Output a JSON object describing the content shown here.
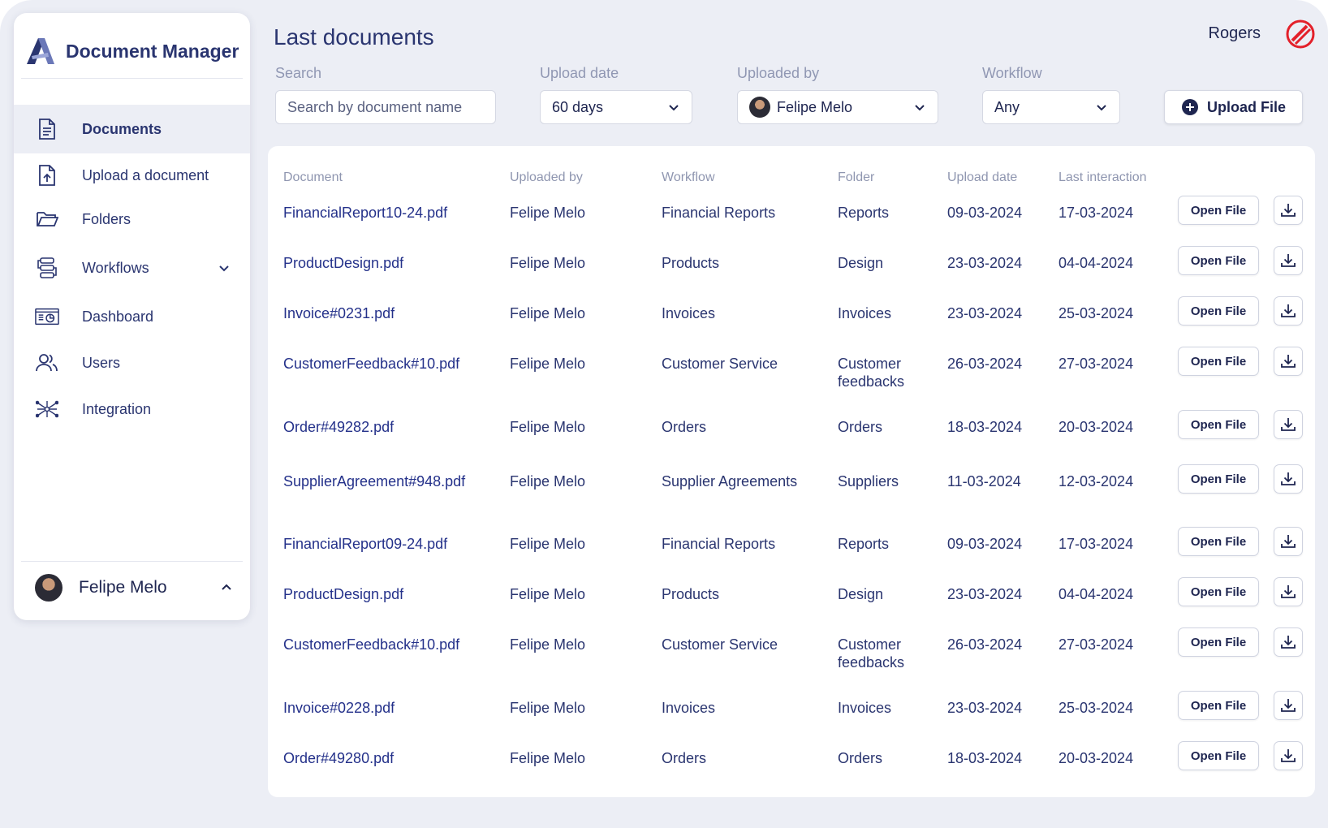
{
  "app": {
    "name": "Document Manager"
  },
  "sidebar": {
    "items": [
      {
        "label": "Documents",
        "icon": "document-icon",
        "active": true
      },
      {
        "label": "Upload a document",
        "icon": "upload-file-icon"
      },
      {
        "label": "Folders",
        "icon": "folder-icon"
      },
      {
        "label": "Workflows",
        "icon": "workflow-icon",
        "expandable": true
      },
      {
        "label": "Dashboard",
        "icon": "dashboard-icon"
      },
      {
        "label": "Users",
        "icon": "users-icon"
      },
      {
        "label": "Integration",
        "icon": "integration-icon"
      }
    ],
    "user": {
      "name": "Felipe Melo"
    }
  },
  "header": {
    "title": "Last documents",
    "account": "Rogers"
  },
  "filters": {
    "search": {
      "label": "Search",
      "placeholder": "Search by document name"
    },
    "upload_date": {
      "label": "Upload date",
      "value": "60 days"
    },
    "uploaded_by": {
      "label": "Uploaded by",
      "value": "Felipe Melo"
    },
    "workflow": {
      "label": "Workflow",
      "value": "Any"
    },
    "upload_button": "Upload File"
  },
  "table": {
    "columns": [
      "Document",
      "Uploaded by",
      "Workflow",
      "Folder",
      "Upload date",
      "Last interaction"
    ],
    "open_label": "Open File",
    "rows": [
      {
        "document": "FinancialReport10-24.pdf",
        "uploaded_by": "Felipe Melo",
        "workflow": "Financial Reports",
        "folder": "Reports",
        "upload_date": "09-03-2024",
        "last_interaction": "17-03-2024"
      },
      {
        "document": "ProductDesign.pdf",
        "uploaded_by": "Felipe Melo",
        "workflow": "Products",
        "folder": "Design",
        "upload_date": "23-03-2024",
        "last_interaction": "04-04-2024"
      },
      {
        "document": "Invoice#0231.pdf",
        "uploaded_by": "Felipe Melo",
        "workflow": "Invoices",
        "folder": "Invoices",
        "upload_date": "23-03-2024",
        "last_interaction": "25-03-2024"
      },
      {
        "document": "CustomerFeedback#10.pdf",
        "uploaded_by": "Felipe Melo",
        "workflow": "Customer Service",
        "folder": "Customer feedbacks",
        "upload_date": "26-03-2024",
        "last_interaction": "27-03-2024"
      },
      {
        "document": "Order#49282.pdf",
        "uploaded_by": "Felipe Melo",
        "workflow": "Orders",
        "folder": "Orders",
        "upload_date": "18-03-2024",
        "last_interaction": "20-03-2024"
      },
      {
        "document": "SupplierAgreement#948.pdf",
        "uploaded_by": "Felipe Melo",
        "workflow": "Supplier Agreements",
        "folder": "Suppliers",
        "upload_date": "11-03-2024",
        "last_interaction": "12-03-2024"
      },
      {
        "document": "FinancialReport09-24.pdf",
        "uploaded_by": "Felipe Melo",
        "workflow": "Financial Reports",
        "folder": "Reports",
        "upload_date": "09-03-2024",
        "last_interaction": "17-03-2024"
      },
      {
        "document": "ProductDesign.pdf",
        "uploaded_by": "Felipe Melo",
        "workflow": "Products",
        "folder": "Design",
        "upload_date": "23-03-2024",
        "last_interaction": "04-04-2024"
      },
      {
        "document": "CustomerFeedback#10.pdf",
        "uploaded_by": "Felipe Melo",
        "workflow": "Customer Service",
        "folder": "Customer feedbacks",
        "upload_date": "26-03-2024",
        "last_interaction": "27-03-2024"
      },
      {
        "document": "Invoice#0228.pdf",
        "uploaded_by": "Felipe Melo",
        "workflow": "Invoices",
        "folder": "Invoices",
        "upload_date": "23-03-2024",
        "last_interaction": "25-03-2024"
      },
      {
        "document": "Order#49280.pdf",
        "uploaded_by": "Felipe Melo",
        "workflow": "Orders",
        "folder": "Orders",
        "upload_date": "18-03-2024",
        "last_interaction": "20-03-2024"
      }
    ]
  },
  "colors": {
    "primary": "#2a3570",
    "background": "#eceef5",
    "muted": "#8f96b0",
    "brand_red": "#e3202a"
  }
}
